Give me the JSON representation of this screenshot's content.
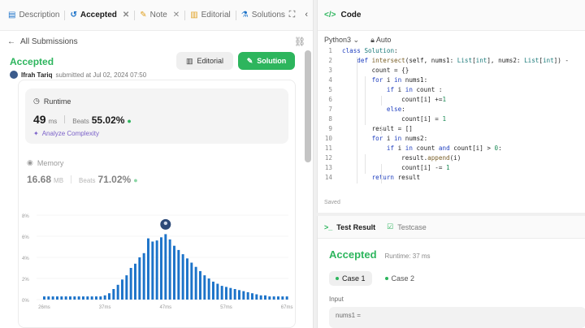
{
  "tabs": [
    {
      "label": "Description"
    },
    {
      "label": "Accepted"
    },
    {
      "label": "Note"
    },
    {
      "label": "Editorial"
    },
    {
      "label": "Solutions"
    }
  ],
  "crumb": {
    "label": "All Submissions"
  },
  "submission": {
    "status": "Accepted",
    "author": "Ifrah Tariq",
    "submitted_text": "submitted at Jul 02, 2024 07:50",
    "editorial_btn": "Editorial",
    "solution_btn": "Solution"
  },
  "runtime": {
    "label": "Runtime",
    "value": "49",
    "unit": "ms",
    "beats_label": "Beats",
    "beats": "55.02%",
    "analyze": "Analyze Complexity"
  },
  "memory": {
    "label": "Memory",
    "value": "16.68",
    "unit": "MB",
    "beats_label": "Beats",
    "beats": "71.02%"
  },
  "chart_data": {
    "type": "bar",
    "y_ticks": [
      "8%",
      "6%",
      "4%",
      "2%",
      "0%"
    ],
    "ylim": [
      0,
      8
    ],
    "x_ticks": [
      "26ms",
      "37ms",
      "47ms",
      "57ms",
      "67ms"
    ],
    "values": [
      0.3,
      0.3,
      0.3,
      0.3,
      0.3,
      0.3,
      0.3,
      0.3,
      0.3,
      0.3,
      0.3,
      0.3,
      0.3,
      0.3,
      0.4,
      0.6,
      1.0,
      1.4,
      1.9,
      2.3,
      3.0,
      3.4,
      4.0,
      4.4,
      5.8,
      5.5,
      5.6,
      5.9,
      6.2,
      5.7,
      5.1,
      4.7,
      4.3,
      3.9,
      3.5,
      3.1,
      2.7,
      2.3,
      2.0,
      1.7,
      1.5,
      1.3,
      1.2,
      1.1,
      1.0,
      0.9,
      0.8,
      0.7,
      0.6,
      0.5,
      0.4,
      0.4,
      0.3,
      0.3,
      0.3,
      0.3,
      0.3
    ],
    "highlight_index": 28,
    "bar_color": "#1c73c9"
  },
  "code_panel": {
    "title": "Code",
    "language": "Python3",
    "autosave": "Auto",
    "saved": "Saved",
    "lines": [
      {
        "n": "1",
        "text": "class Solution:"
      },
      {
        "n": "2",
        "text": "    def intersect(self, nums1: List[int], nums2: List[int]) -"
      },
      {
        "n": "3",
        "text": "        count = {}"
      },
      {
        "n": "4",
        "text": "        for i in nums1:"
      },
      {
        "n": "5",
        "text": "            if i in count :"
      },
      {
        "n": "6",
        "text": "                count[i] +=1"
      },
      {
        "n": "7",
        "text": "            else:"
      },
      {
        "n": "8",
        "text": "                count[i] = 1"
      },
      {
        "n": "9",
        "text": "        result = []"
      },
      {
        "n": "10",
        "text": "        for i in nums2:"
      },
      {
        "n": "11",
        "text": "            if i in count and count[i] > 0:"
      },
      {
        "n": "12",
        "text": "                result.append(i)"
      },
      {
        "n": "13",
        "text": "                count[i] -= 1"
      },
      {
        "n": "14",
        "text": "        return result"
      }
    ]
  },
  "result_panel": {
    "tab_result": "Test Result",
    "tab_case": "Testcase",
    "status": "Accepted",
    "runtime": "Runtime: 37 ms",
    "cases": [
      "Case 1",
      "Case 2"
    ],
    "input_label": "Input",
    "input_value": "nums1 ="
  }
}
